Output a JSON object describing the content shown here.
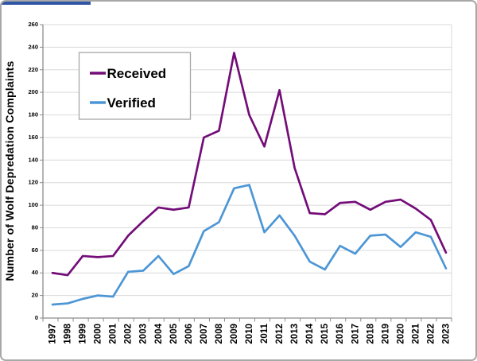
{
  "window": {
    "edge_strip_color": "#2f55a4",
    "outer_border_color": "#a8a8a8"
  },
  "colors": {
    "gridline": "#d9d9d9",
    "axis": "#8c8c8c",
    "tick": "#8c8c8c",
    "legend_border": "#a6a6a6",
    "received": "#730D78",
    "verified": "#4D96D5"
  },
  "chart_data": {
    "type": "line",
    "title": "",
    "xlabel": "",
    "ylabel": "Number of Wolf Depredation Complaints",
    "ylim": [
      0,
      260
    ],
    "ytick_step": 20,
    "grid": true,
    "legend_position": "upper-left-inside",
    "legend_entries": [
      "Received",
      "Verified"
    ],
    "categories": [
      "1997",
      "1998",
      "1999",
      "2000",
      "2001",
      "2002",
      "2003",
      "2004",
      "2005",
      "2006",
      "2007",
      "2008",
      "2009",
      "2010",
      "2011",
      "2012",
      "2013",
      "2014",
      "2015",
      "2016",
      "2017",
      "2018",
      "2019",
      "2020",
      "2021",
      "2022",
      "2023"
    ],
    "series": [
      {
        "name": "Received",
        "color": "#730D78",
        "values": [
          40,
          38,
          55,
          54,
          55,
          73,
          86,
          98,
          96,
          98,
          160,
          166,
          235,
          180,
          152,
          202,
          133,
          93,
          92,
          102,
          103,
          96,
          103,
          105,
          97,
          87,
          58
        ]
      },
      {
        "name": "Verified",
        "color": "#4D96D5",
        "values": [
          12,
          13,
          17,
          20,
          19,
          41,
          42,
          55,
          39,
          46,
          77,
          85,
          115,
          118,
          76,
          91,
          73,
          50,
          43,
          64,
          57,
          73,
          74,
          63,
          76,
          72,
          44
        ]
      }
    ]
  }
}
